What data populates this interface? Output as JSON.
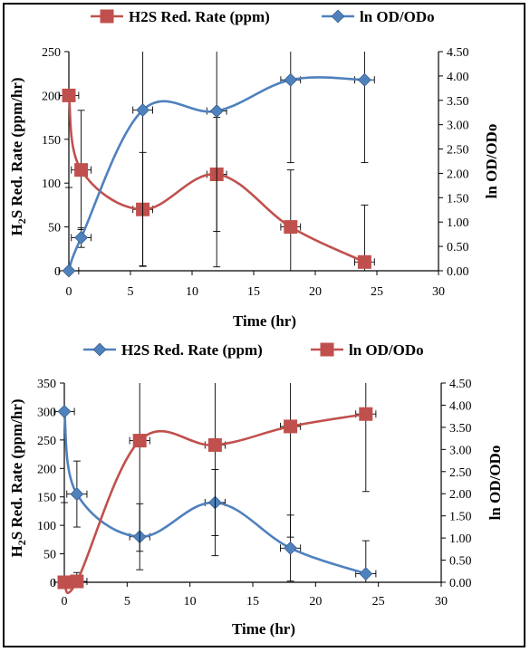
{
  "colors": {
    "red": "#c0504d",
    "blue": "#4f81bd",
    "errorbar": "#000000"
  },
  "chart_data": [
    {
      "type": "line",
      "xlabel": "Time (hr)",
      "ylabel_left": "H2S Red. Rate (ppm/hr)",
      "ylabel_right": "ln OD/ODo",
      "xlim": [
        0,
        30
      ],
      "ylim_left": [
        0,
        250
      ],
      "ylim_right": [
        0,
        4.5
      ],
      "x_ticks": [
        "0",
        "5",
        "10",
        "15",
        "20",
        "25",
        "30"
      ],
      "y_left_ticks": [
        "0",
        "50",
        "100",
        "150",
        "200",
        "250"
      ],
      "y_right_ticks": [
        "0.00",
        "0.50",
        "1.00",
        "1.50",
        "2.00",
        "2.50",
        "3.00",
        "3.50",
        "4.00",
        "4.50"
      ],
      "legend_position": "top",
      "series": [
        {
          "name": "H2S Red. Rate (ppm)",
          "axis": "left",
          "color": "red",
          "marker": "square",
          "x": [
            0,
            1,
            6,
            12,
            18,
            24
          ],
          "y": [
            200,
            115,
            70,
            110,
            50,
            10
          ],
          "error_y": [
            105,
            68,
            65,
            65,
            65,
            65
          ],
          "error_x": [
            0.8,
            0.8,
            0.8,
            0.8,
            0.8,
            0.8
          ]
        },
        {
          "name": "ln OD/ODo",
          "axis": "right",
          "color": "blue",
          "marker": "diamond",
          "x": [
            0,
            1,
            6,
            12,
            18,
            24
          ],
          "y": [
            0.0,
            0.68,
            3.3,
            3.28,
            3.92,
            3.92
          ],
          "error_y": [
            0,
            0.2,
            3.2,
            3.2,
            1.7,
            1.7
          ],
          "error_x": [
            0.8,
            0.8,
            0.8,
            0.8,
            0.8,
            0.8
          ]
        }
      ]
    },
    {
      "type": "line",
      "xlabel": "Time (hr)",
      "ylabel_left": "H2S Red. Rate (ppm/hr)",
      "ylabel_right": "ln OD/ODo",
      "xlim": [
        0,
        30
      ],
      "ylim_left": [
        0,
        350
      ],
      "ylim_right": [
        0,
        4.5
      ],
      "x_ticks": [
        "0",
        "5",
        "10",
        "15",
        "20",
        "25",
        "30"
      ],
      "y_left_ticks": [
        "0",
        "50",
        "100",
        "150",
        "200",
        "250",
        "300",
        "350"
      ],
      "y_right_ticks": [
        "0.00",
        "0.50",
        "1.00",
        "1.50",
        "2.00",
        "2.50",
        "3.00",
        "3.50",
        "4.00",
        "4.50"
      ],
      "legend_position": "top",
      "series": [
        {
          "name": "H2S Red. Rate (ppm)",
          "axis": "left",
          "color": "blue",
          "marker": "diamond",
          "x": [
            0,
            1,
            6,
            12,
            18,
            24
          ],
          "y": [
            300,
            155,
            80,
            140,
            60,
            15
          ],
          "error_y": [
            160,
            58,
            58,
            58,
            58,
            58
          ],
          "error_x": [
            0.8,
            0.8,
            0.8,
            0.8,
            0.8,
            0.8
          ]
        },
        {
          "name": "ln OD/ODo",
          "axis": "right",
          "color": "red",
          "marker": "square",
          "x": [
            0,
            1,
            6,
            12,
            18,
            24
          ],
          "y": [
            0.0,
            0.02,
            3.2,
            3.1,
            3.52,
            3.8
          ],
          "error_y": [
            0,
            0.2,
            2.5,
            2.5,
            2.5,
            1.75
          ],
          "error_x": [
            0.8,
            0.8,
            0.8,
            0.8,
            0.8,
            0.8
          ]
        }
      ]
    }
  ]
}
